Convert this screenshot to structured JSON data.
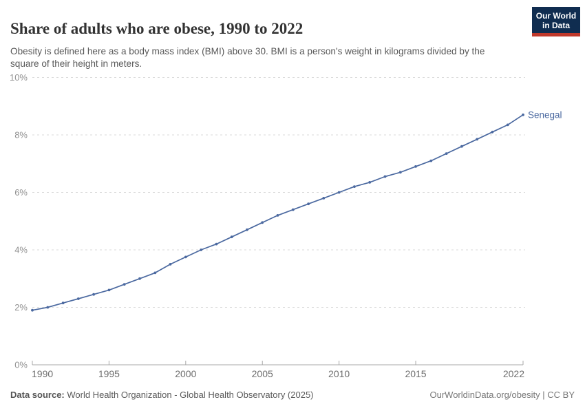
{
  "header": {
    "title": "Share of adults who are obese, 1990 to 2022",
    "subtitle": "Obesity is defined here as a body mass index (BMI) above 30. BMI is a person's weight in kilograms divided by the square of their height in meters.",
    "logo": {
      "line1": "Our World",
      "line2": "in Data",
      "bg_color": "#102d50",
      "accent_color": "#c0392b"
    }
  },
  "chart_data": {
    "type": "line",
    "title": "Share of adults who are obese, 1990 to 2022",
    "xlabel": "",
    "ylabel": "",
    "xlim": [
      1990,
      2022
    ],
    "ylim": [
      0,
      10
    ],
    "x_ticks": [
      1990,
      1995,
      2000,
      2005,
      2010,
      2015,
      2022
    ],
    "y_ticks": [
      0,
      2,
      4,
      6,
      8,
      10
    ],
    "y_tick_suffix": "%",
    "grid": "horizontal-dashed",
    "legend_position": "end-of-line-label",
    "series": [
      {
        "name": "Senegal",
        "color": "#4b69a0",
        "x": [
          1990,
          1991,
          1992,
          1993,
          1994,
          1995,
          1996,
          1997,
          1998,
          1999,
          2000,
          2001,
          2002,
          2003,
          2004,
          2005,
          2006,
          2007,
          2008,
          2009,
          2010,
          2011,
          2012,
          2013,
          2014,
          2015,
          2016,
          2017,
          2018,
          2019,
          2020,
          2021,
          2022
        ],
        "values": [
          1.9,
          2.0,
          2.15,
          2.3,
          2.45,
          2.6,
          2.8,
          3.0,
          3.2,
          3.5,
          3.75,
          4.0,
          4.2,
          4.45,
          4.7,
          4.95,
          5.2,
          5.4,
          5.6,
          5.8,
          6.0,
          6.2,
          6.35,
          6.55,
          6.7,
          6.9,
          7.1,
          7.35,
          7.6,
          7.85,
          8.1,
          8.35,
          8.7
        ]
      }
    ],
    "axis_colors": {
      "grid": "#d9d9d9",
      "axis_line": "#a8a8a8",
      "y_tick_label": "#929292",
      "x_tick_label": "#6e6e6e"
    }
  },
  "footer": {
    "data_source_label": "Data source:",
    "data_source_value": " World Health Organization - Global Health Observatory (2025)",
    "attribution": "OurWorldinData.org/obesity | CC BY"
  }
}
